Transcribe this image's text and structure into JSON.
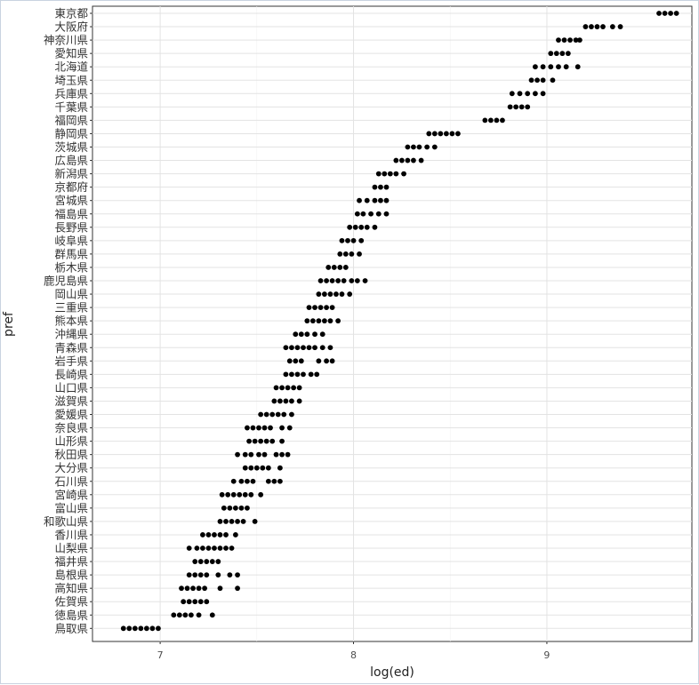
{
  "chart_data": {
    "type": "scatter",
    "xlabel": "log(ed)",
    "ylabel": "pref",
    "xlim": [
      6.65,
      9.75
    ],
    "x_ticks": [
      7,
      8,
      9
    ],
    "grid": true,
    "categories": [
      "東京都",
      "大阪府",
      "神奈川県",
      "愛知県",
      "北海道",
      "埼玉県",
      "兵庫県",
      "千葉県",
      "福岡県",
      "静岡県",
      "茨城県",
      "広島県",
      "新潟県",
      "京都府",
      "宮城県",
      "福島県",
      "長野県",
      "岐阜県",
      "群馬県",
      "栃木県",
      "鹿児島県",
      "岡山県",
      "三重県",
      "熊本県",
      "沖縄県",
      "青森県",
      "岩手県",
      "長崎県",
      "山口県",
      "滋賀県",
      "愛媛県",
      "奈良県",
      "山形県",
      "秋田県",
      "大分県",
      "石川県",
      "宮崎県",
      "富山県",
      "和歌山県",
      "香川県",
      "山梨県",
      "福井県",
      "島根県",
      "高知県",
      "佐賀県",
      "徳島県",
      "鳥取県"
    ],
    "ranges": [
      {
        "pref": "東京都",
        "points": [
          9.58,
          9.61,
          9.64,
          9.67
        ]
      },
      {
        "pref": "大阪府",
        "points": [
          9.2,
          9.23,
          9.26,
          9.29,
          9.34,
          9.38
        ]
      },
      {
        "pref": "神奈川県",
        "points": [
          9.06,
          9.09,
          9.12,
          9.15,
          9.17
        ]
      },
      {
        "pref": "愛知県",
        "points": [
          9.02,
          9.05,
          9.08,
          9.11
        ]
      },
      {
        "pref": "北海道",
        "points": [
          8.94,
          8.98,
          9.02,
          9.06,
          9.1,
          9.16
        ]
      },
      {
        "pref": "埼玉県",
        "points": [
          8.92,
          8.95,
          8.98,
          9.03
        ]
      },
      {
        "pref": "兵庫県",
        "points": [
          8.82,
          8.86,
          8.9,
          8.94,
          8.98
        ]
      },
      {
        "pref": "千葉県",
        "points": [
          8.81,
          8.84,
          8.87,
          8.9
        ]
      },
      {
        "pref": "福岡県",
        "points": [
          8.68,
          8.71,
          8.74,
          8.77
        ]
      },
      {
        "pref": "静岡県",
        "points": [
          8.39,
          8.42,
          8.45,
          8.48,
          8.51,
          8.54
        ]
      },
      {
        "pref": "茨城県",
        "points": [
          8.28,
          8.31,
          8.34,
          8.38,
          8.42
        ]
      },
      {
        "pref": "広島県",
        "points": [
          8.22,
          8.25,
          8.28,
          8.31,
          8.35
        ]
      },
      {
        "pref": "新潟県",
        "points": [
          8.13,
          8.16,
          8.19,
          8.22,
          8.26
        ]
      },
      {
        "pref": "京都府",
        "points": [
          8.11,
          8.14,
          8.17
        ]
      },
      {
        "pref": "宮城県",
        "points": [
          8.03,
          8.07,
          8.11,
          8.14,
          8.17
        ]
      },
      {
        "pref": "福島県",
        "points": [
          8.02,
          8.05,
          8.09,
          8.13,
          8.17
        ]
      },
      {
        "pref": "長野県",
        "points": [
          7.98,
          8.01,
          8.04,
          8.07,
          8.11
        ]
      },
      {
        "pref": "岐阜県",
        "points": [
          7.94,
          7.97,
          8.0,
          8.04
        ]
      },
      {
        "pref": "群馬県",
        "points": [
          7.93,
          7.96,
          7.99,
          8.03
        ]
      },
      {
        "pref": "栃木県",
        "points": [
          7.87,
          7.9,
          7.93,
          7.96
        ]
      },
      {
        "pref": "鹿児島県",
        "points": [
          7.83,
          7.86,
          7.89,
          7.92,
          7.95,
          7.99,
          8.02,
          8.06
        ]
      },
      {
        "pref": "岡山県",
        "points": [
          7.82,
          7.85,
          7.88,
          7.91,
          7.94,
          7.98
        ]
      },
      {
        "pref": "三重県",
        "points": [
          7.77,
          7.8,
          7.83,
          7.86,
          7.89
        ]
      },
      {
        "pref": "熊本県",
        "points": [
          7.76,
          7.79,
          7.82,
          7.85,
          7.88,
          7.92
        ]
      },
      {
        "pref": "沖縄県",
        "points": [
          7.7,
          7.73,
          7.76,
          7.8,
          7.84
        ]
      },
      {
        "pref": "青森県",
        "points": [
          7.65,
          7.68,
          7.71,
          7.74,
          7.77,
          7.8,
          7.84,
          7.88
        ]
      },
      {
        "pref": "岩手県",
        "points": [
          7.67,
          7.7,
          7.73,
          7.82,
          7.86,
          7.89
        ]
      },
      {
        "pref": "長崎県",
        "points": [
          7.65,
          7.68,
          7.71,
          7.74,
          7.78,
          7.81
        ]
      },
      {
        "pref": "山口県",
        "points": [
          7.6,
          7.63,
          7.66,
          7.69,
          7.72
        ]
      },
      {
        "pref": "滋賀県",
        "points": [
          7.59,
          7.62,
          7.65,
          7.68,
          7.72
        ]
      },
      {
        "pref": "愛媛県",
        "points": [
          7.52,
          7.55,
          7.58,
          7.61,
          7.64,
          7.68
        ]
      },
      {
        "pref": "奈良県",
        "points": [
          7.45,
          7.48,
          7.51,
          7.54,
          7.57,
          7.63,
          7.67
        ]
      },
      {
        "pref": "山形県",
        "points": [
          7.46,
          7.49,
          7.52,
          7.55,
          7.58,
          7.63
        ]
      },
      {
        "pref": "秋田県",
        "points": [
          7.4,
          7.44,
          7.47,
          7.51,
          7.54,
          7.6,
          7.63,
          7.66
        ]
      },
      {
        "pref": "大分県",
        "points": [
          7.44,
          7.47,
          7.5,
          7.53,
          7.56,
          7.62
        ]
      },
      {
        "pref": "石川県",
        "points": [
          7.38,
          7.42,
          7.45,
          7.48,
          7.56,
          7.59,
          7.62
        ]
      },
      {
        "pref": "宮崎県",
        "points": [
          7.32,
          7.35,
          7.38,
          7.41,
          7.44,
          7.47,
          7.52
        ]
      },
      {
        "pref": "富山県",
        "points": [
          7.33,
          7.36,
          7.39,
          7.42,
          7.45
        ]
      },
      {
        "pref": "和歌山県",
        "points": [
          7.31,
          7.34,
          7.37,
          7.4,
          7.43,
          7.49
        ]
      },
      {
        "pref": "香川県",
        "points": [
          7.22,
          7.25,
          7.28,
          7.31,
          7.34,
          7.39
        ]
      },
      {
        "pref": "山梨県",
        "points": [
          7.15,
          7.19,
          7.22,
          7.25,
          7.28,
          7.31,
          7.34,
          7.37
        ]
      },
      {
        "pref": "福井県",
        "points": [
          7.18,
          7.21,
          7.24,
          7.27,
          7.3
        ]
      },
      {
        "pref": "島根県",
        "points": [
          7.15,
          7.18,
          7.21,
          7.24,
          7.3,
          7.36,
          7.4
        ]
      },
      {
        "pref": "高知県",
        "points": [
          7.11,
          7.14,
          7.17,
          7.2,
          7.23,
          7.31,
          7.4
        ]
      },
      {
        "pref": "佐賀県",
        "points": [
          7.12,
          7.15,
          7.18,
          7.21,
          7.24
        ]
      },
      {
        "pref": "徳島県",
        "points": [
          7.07,
          7.1,
          7.13,
          7.16,
          7.2,
          7.27
        ]
      },
      {
        "pref": "鳥取県",
        "points": [
          6.81,
          6.84,
          6.87,
          6.9,
          6.93,
          6.96,
          6.99
        ]
      }
    ]
  }
}
